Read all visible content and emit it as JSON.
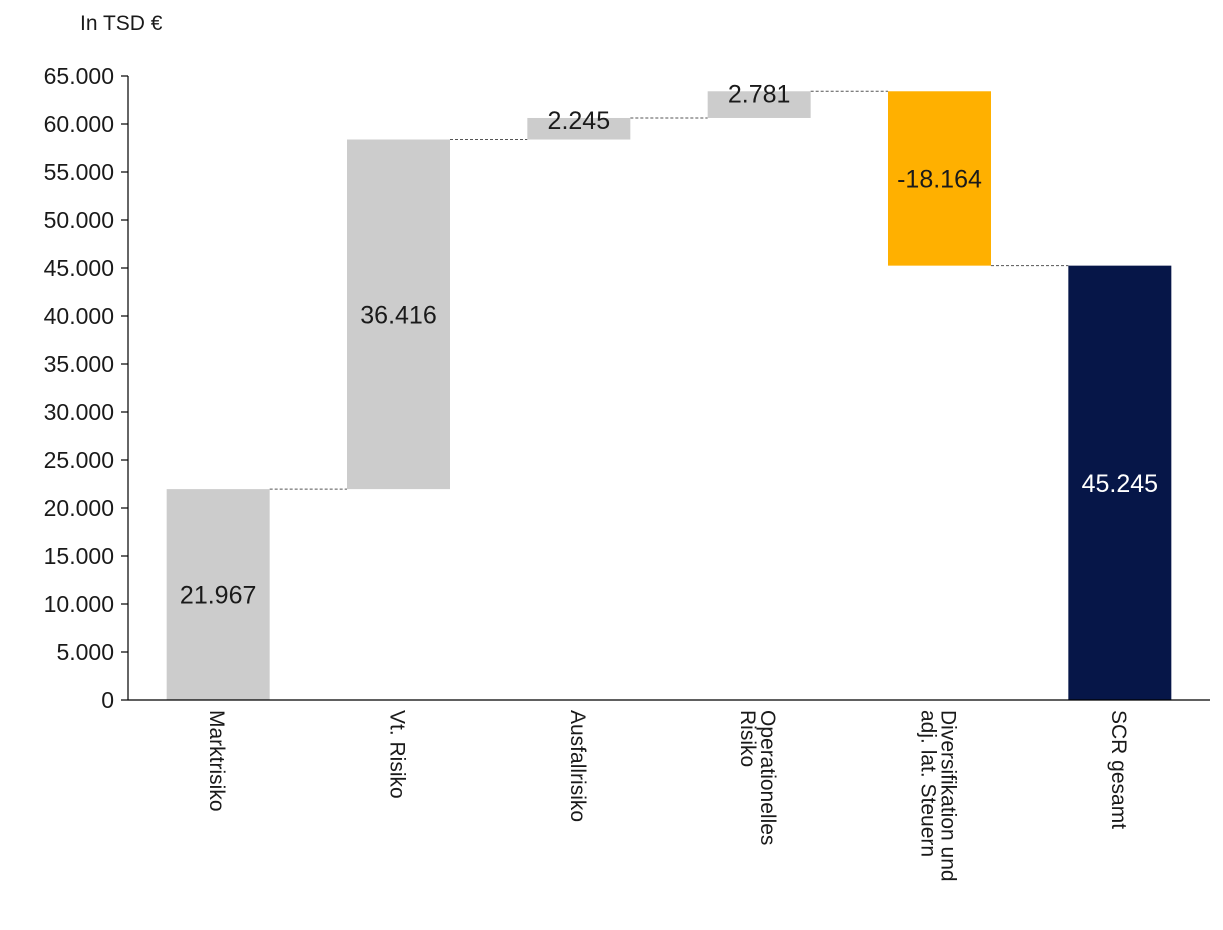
{
  "chart_data": {
    "type": "bar",
    "subtype": "waterfall",
    "unit_label": "In TSD €",
    "ylim": [
      0,
      65000
    ],
    "yticks": [
      0,
      5000,
      10000,
      15000,
      20000,
      25000,
      30000,
      35000,
      40000,
      45000,
      50000,
      55000,
      60000,
      65000
    ],
    "ytick_labels": [
      "0",
      "5.000",
      "10.000",
      "15.000",
      "20.000",
      "25.000",
      "30.000",
      "35.000",
      "40.000",
      "45.000",
      "50.000",
      "55.000",
      "60.000",
      "65.000"
    ],
    "grid": false,
    "categories": [
      [
        "Marktrisiko"
      ],
      [
        "Vt. Risiko"
      ],
      [
        "Ausfallrisiko"
      ],
      [
        "Operationelles",
        "Risiko"
      ],
      [
        "Diversifikation und",
        "adj. lat. Steuern"
      ],
      [
        "SCR gesamt"
      ]
    ],
    "values": [
      21967,
      36416,
      2245,
      2781,
      -18164,
      45245
    ],
    "value_labels": [
      "21.967",
      "36.416",
      "2.245",
      "2.781",
      "-18.164",
      "45.245"
    ],
    "bar_types": [
      "increase",
      "increase",
      "increase",
      "increase",
      "decrease",
      "total"
    ],
    "colors": {
      "increase": "#cccccc",
      "decrease": "#ffb000",
      "total": "#061648",
      "label_dark": "#1a1a1a",
      "label_light": "#ffffff",
      "connector": "#555555",
      "axis": "#000000"
    }
  }
}
